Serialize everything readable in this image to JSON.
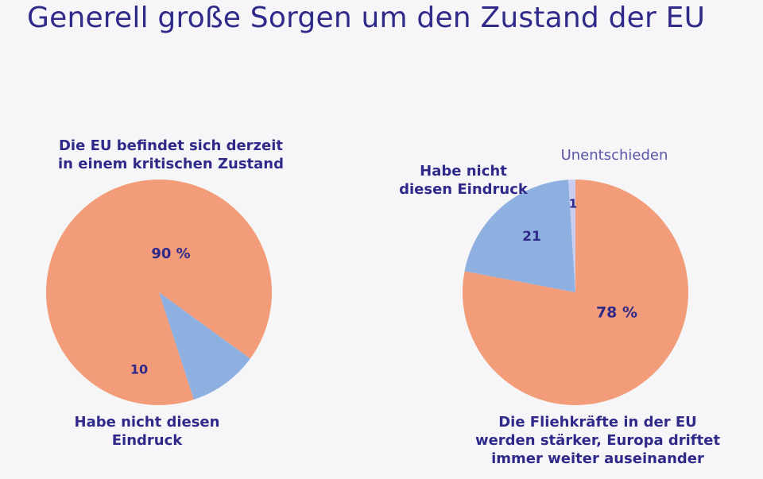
{
  "title": "Generell große Sorgen um den Zustand der EU",
  "colors": {
    "primary": "#f29c79",
    "secondary": "#8eb0e0",
    "tertiary": "#c9ceee",
    "text": "#2f2a8a"
  },
  "chart_data": [
    {
      "type": "pie",
      "slices": [
        {
          "label": "Die EU befindet sich derzeit in einem kritischen Zustand",
          "value": 90,
          "value_label": "90 %",
          "color": "#f29c79"
        },
        {
          "label": "Habe nicht diesen Eindruck",
          "value": 10,
          "value_label": "10",
          "color": "#8eb0e0"
        }
      ],
      "labels": {
        "top": [
          "Die EU befindet sich derzeit",
          "in einem kritischen Zustand"
        ],
        "bottom": [
          "Habe nicht diesen",
          "Eindruck"
        ]
      }
    },
    {
      "type": "pie",
      "slices": [
        {
          "label": "Die Fliehkräfte in der EU werden stärker, Europa driftet immer weiter auseinander",
          "value": 78,
          "value_label": "78 %",
          "color": "#f29c79"
        },
        {
          "label": "Habe nicht diesen Eindruck",
          "value": 21,
          "value_label": "21",
          "color": "#8eb0e0"
        },
        {
          "label": "Unentschieden",
          "value": 1,
          "value_label": "1",
          "color": "#c9ceee"
        }
      ],
      "labels": {
        "top_left": [
          "Habe nicht",
          "diesen Eindruck"
        ],
        "top_right": "Unentschieden",
        "bottom": [
          "Die Fliehkräfte in der EU",
          "werden stärker, Europa driftet",
          "immer weiter auseinander"
        ]
      }
    }
  ]
}
